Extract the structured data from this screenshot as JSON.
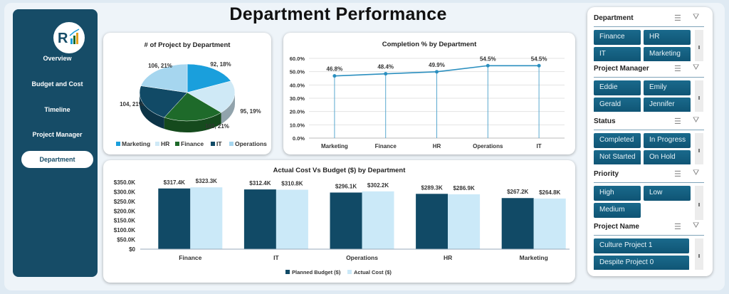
{
  "title": "Department Performance",
  "sidebar": {
    "items": [
      {
        "label": "Overview"
      },
      {
        "label": "Budget and Cost"
      },
      {
        "label": "Timeline"
      },
      {
        "label": "Project Manager"
      },
      {
        "label": "Department",
        "active": true
      }
    ]
  },
  "pie": {
    "title": "# of Project  by Department",
    "slices": [
      {
        "name": "Marketing",
        "value": 92,
        "label": "92, 18%",
        "color": "#1a9fdc"
      },
      {
        "name": "HR",
        "value": 95,
        "label": "95, 19%",
        "color": "#cfe9f6"
      },
      {
        "name": "Finance",
        "value": 103,
        "label": "103, 21%",
        "color": "#1e6a2a"
      },
      {
        "name": "IT",
        "value": 104,
        "label": "104, 21%",
        "color": "#114a66"
      },
      {
        "name": "Operations",
        "value": 106,
        "label": "106, 21%",
        "color": "#a6d6ef"
      }
    ]
  },
  "chart_data": [
    {
      "type": "pie",
      "title": "# of Project  by Department",
      "categories": [
        "Marketing",
        "HR",
        "Finance",
        "IT",
        "Operations"
      ],
      "values": [
        92,
        95,
        103,
        104,
        106
      ],
      "percent": [
        18,
        19,
        21,
        21,
        21
      ],
      "legend": "bottom"
    },
    {
      "type": "line",
      "title": "Completion % by Department",
      "categories": [
        "Marketing",
        "Finance",
        "HR",
        "Operations",
        "IT"
      ],
      "values": [
        46.8,
        48.4,
        49.9,
        54.5,
        54.5
      ],
      "data_labels": [
        "46.8%",
        "48.4%",
        "49.9%",
        "54.5%",
        "54.5%"
      ],
      "ylim": [
        0,
        60
      ],
      "yticks": [
        "0.0%",
        "10.0%",
        "20.0%",
        "30.0%",
        "40.0%",
        "50.0%",
        "60.0%"
      ],
      "grid": true,
      "color": "#2b8fbf"
    },
    {
      "type": "bar",
      "title": "Actual Cost Vs Budget ($) by Department",
      "categories": [
        "Finance",
        "IT",
        "Operations",
        "HR",
        "Marketing"
      ],
      "series": [
        {
          "name": "Planned Budget ($)",
          "values": [
            317.4,
            312.4,
            296.1,
            289.3,
            267.2
          ],
          "labels": [
            "$317.4K",
            "$312.4K",
            "$296.1K",
            "$289.3K",
            "$267.2K"
          ],
          "color": "#114a66"
        },
        {
          "name": "Actual Cost ($)",
          "values": [
            323.3,
            310.8,
            302.2,
            286.9,
            264.8
          ],
          "labels": [
            "$323.3K",
            "$310.8K",
            "$302.2K",
            "$286.9K",
            "$264.8K"
          ],
          "color": "#cbe9f8"
        }
      ],
      "ylim": [
        0,
        350
      ],
      "yticks": [
        "$0",
        "$50.0K",
        "$100.0K",
        "$150.0K",
        "$200.0K",
        "$250.0K",
        "$300.0K",
        "$350.0K"
      ],
      "legend": "bottom"
    }
  ],
  "slicers": [
    {
      "title": "Department",
      "items": [
        "Finance",
        "HR",
        "IT",
        "Marketing"
      ]
    },
    {
      "title": "Project Manager",
      "items": [
        "Eddie",
        "Emily",
        "Gerald",
        "Jennifer"
      ]
    },
    {
      "title": "Status",
      "items": [
        "Completed",
        "In Progress",
        "Not Started",
        "On Hold"
      ]
    },
    {
      "title": "Priority",
      "items": [
        "High",
        "Low",
        "Medium"
      ]
    },
    {
      "title": "Project Name",
      "items": [
        "Culture Project 1",
        "Despite Project 0"
      ]
    }
  ]
}
